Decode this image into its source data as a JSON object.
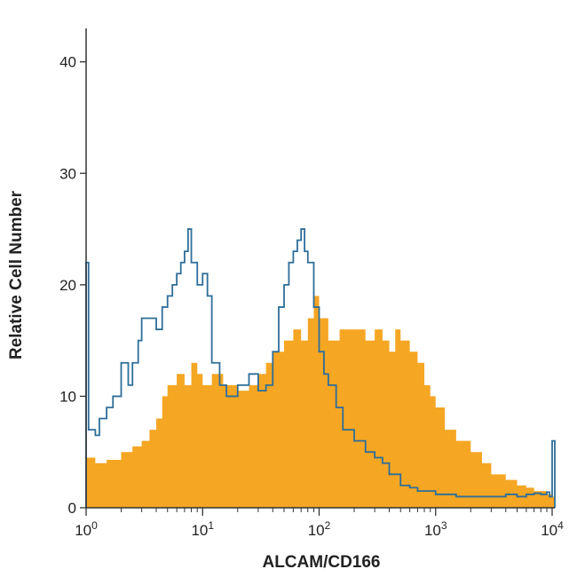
{
  "chart_data": {
    "type": "area",
    "title": "",
    "xlabel": "ALCAM/CD166",
    "ylabel": "Relative Cell Number",
    "x_scale": "log",
    "xlim": [
      1,
      10000
    ],
    "ylim": [
      0,
      43
    ],
    "x_ticks": [
      {
        "value": 1,
        "base": "10",
        "exp": "0"
      },
      {
        "value": 10,
        "base": "10",
        "exp": "1"
      },
      {
        "value": 100,
        "base": "10",
        "exp": "2"
      },
      {
        "value": 1000,
        "base": "10",
        "exp": "3"
      },
      {
        "value": 10000,
        "base": "10",
        "exp": "4"
      }
    ],
    "y_ticks": [
      0,
      10,
      20,
      30,
      40
    ],
    "grid": false,
    "legend": "none",
    "series": [
      {
        "style": "filled",
        "color": "#f5a623",
        "x": [
          1,
          1.2,
          1.5,
          2,
          2.5,
          3,
          3.5,
          4,
          4.5,
          5,
          6,
          7,
          8,
          9,
          10,
          12,
          15,
          20,
          25,
          30,
          35,
          40,
          50,
          60,
          70,
          80,
          90,
          100,
          120,
          150,
          200,
          250,
          300,
          350,
          400,
          450,
          500,
          600,
          700,
          800,
          900,
          1000,
          1200,
          1500,
          2000,
          2500,
          3000,
          4000,
          5000,
          6000,
          7000,
          8000,
          9000,
          10000
        ],
        "y": [
          4.5,
          4,
          4.3,
          5,
          5.5,
          6,
          7,
          8,
          10,
          11,
          12,
          11,
          13,
          12,
          11,
          12,
          11,
          10.5,
          11,
          12,
          13,
          14,
          15,
          16,
          15,
          17,
          19,
          17,
          15,
          16,
          16,
          15,
          16,
          15,
          14,
          16,
          15,
          14,
          13,
          11,
          10,
          9,
          7,
          6,
          5,
          4,
          3,
          2.5,
          2,
          1.8,
          1.5,
          1.5,
          1.2,
          1
        ]
      },
      {
        "style": "outline",
        "color": "#2e6e99",
        "x": [
          1,
          1.05,
          1.1,
          1.2,
          1.3,
          1.5,
          1.7,
          2,
          2.3,
          2.5,
          2.8,
          3,
          3.5,
          4,
          4.5,
          5,
          5.5,
          6,
          6.5,
          7,
          7.5,
          8,
          9,
          10,
          11,
          12,
          14,
          16,
          20,
          25,
          30,
          35,
          40,
          45,
          50,
          55,
          60,
          65,
          70,
          75,
          80,
          90,
          100,
          110,
          120,
          140,
          160,
          200,
          250,
          300,
          350,
          400,
          500,
          600,
          700,
          800,
          1000,
          1200,
          1500,
          2000,
          3000,
          4000,
          5000,
          6000,
          7000,
          8000,
          9000,
          9500,
          10000
        ],
        "y": [
          22,
          7,
          7,
          6.5,
          8,
          9,
          10,
          13,
          11,
          13,
          15,
          17,
          17,
          16,
          18,
          19,
          20,
          21,
          22,
          23,
          25,
          22,
          20,
          21,
          19,
          13,
          11,
          10,
          11,
          12,
          10.5,
          11,
          14,
          18,
          20,
          22,
          23,
          24,
          25,
          23,
          22,
          18,
          14,
          12,
          11,
          9,
          7,
          6,
          5,
          4.5,
          4,
          3,
          2,
          1.8,
          1.5,
          1.5,
          1.2,
          1.2,
          1,
          1,
          1,
          1.2,
          1,
          1.2,
          1.3,
          1.2,
          1.4,
          1,
          6
        ]
      }
    ]
  }
}
